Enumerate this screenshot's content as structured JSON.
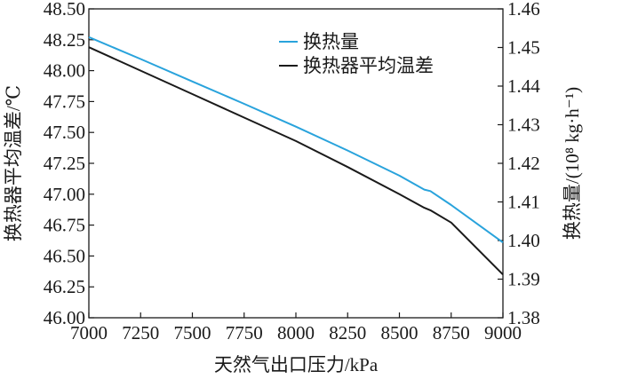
{
  "chart_data": {
    "type": "line",
    "xlabel": "天然气出口压力/kPa",
    "ylabel_left": "换热器平均温差/℃",
    "ylabel_right": "换热量/(10⁸ kg·h⁻¹)",
    "xlim": [
      7000,
      9000
    ],
    "ylim_left": [
      46.0,
      48.5
    ],
    "ylim_right": [
      1.38,
      1.46
    ],
    "x_ticks": [
      "7000",
      "7250",
      "7500",
      "7750",
      "8000",
      "8250",
      "8500",
      "8750",
      "9000"
    ],
    "y_left_ticks": [
      "46.00",
      "46.25",
      "46.50",
      "46.75",
      "47.00",
      "47.25",
      "47.50",
      "47.75",
      "48.00",
      "48.25",
      "48.50"
    ],
    "y_right_ticks": [
      "1.38",
      "1.39",
      "1.40",
      "1.41",
      "1.42",
      "1.43",
      "1.44",
      "1.45",
      "1.46"
    ],
    "grid": false,
    "legend_position": "top-right",
    "series": [
      {
        "name": "换热量",
        "axis": "right",
        "color": "#29a3dc",
        "x": [
          7000,
          7250,
          7500,
          7750,
          8000,
          8250,
          8500,
          8620,
          8650,
          8750,
          9000
        ],
        "y": [
          1.4527,
          1.447,
          1.4412,
          1.4354,
          1.4295,
          1.4233,
          1.4168,
          1.4132,
          1.4128,
          1.4092,
          1.3995
        ]
      },
      {
        "name": "换热器平均温差",
        "axis": "left",
        "color": "#1a1a1a",
        "x": [
          7000,
          7250,
          7500,
          7750,
          8000,
          8250,
          8500,
          8620,
          8650,
          8750,
          9000
        ],
        "y": [
          48.19,
          48.0,
          47.81,
          47.62,
          47.43,
          47.22,
          47.0,
          46.89,
          46.87,
          46.77,
          46.35
        ]
      }
    ]
  }
}
